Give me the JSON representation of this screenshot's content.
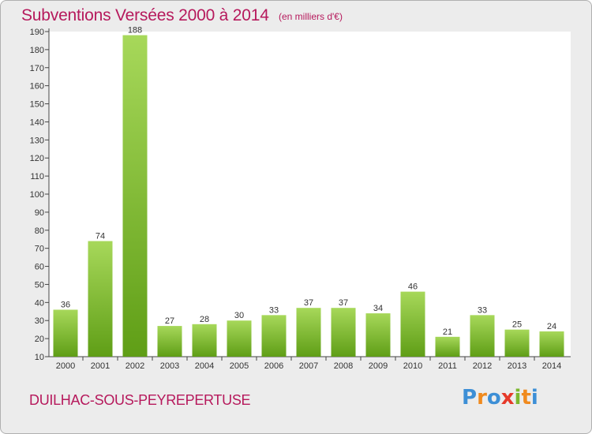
{
  "header": {
    "title": "Subventions Versées 2000 à 2014",
    "unit_note": "(en milliers d'€)"
  },
  "footer": {
    "commune": "DUILHAC-SOUS-PEYREPERTUSE",
    "logo_letters": [
      "P",
      "r",
      "o",
      "x",
      "i",
      "t",
      "i"
    ]
  },
  "colors": {
    "title": "#b6195c",
    "bar_top": "#a7d85a",
    "bar_bottom": "#5f9e16",
    "plot_background": "#ffffff",
    "frame_background": "#ececec",
    "logo": [
      "#3d8fd6",
      "#f08a1e",
      "#3d8fd6",
      "#e63a2a",
      "#7cb82f",
      "#f08a1e",
      "#3d8fd6"
    ]
  },
  "chart_data": {
    "type": "bar",
    "title": "Subventions Versées 2000 à 2014",
    "subtitle": "(en milliers d'€)",
    "categories": [
      "2000",
      "2001",
      "2002",
      "2003",
      "2004",
      "2005",
      "2006",
      "2007",
      "2008",
      "2009",
      "2010",
      "2011",
      "2012",
      "2013",
      "2014"
    ],
    "values": [
      36,
      74,
      188,
      27,
      28,
      30,
      33,
      37,
      37,
      34,
      46,
      21,
      33,
      25,
      24
    ],
    "ylim": [
      10,
      190
    ],
    "yticks": [
      10,
      20,
      30,
      40,
      50,
      60,
      70,
      80,
      90,
      100,
      110,
      120,
      130,
      140,
      150,
      160,
      170,
      180,
      190
    ],
    "grid": false,
    "data_labels": true,
    "legend": "none"
  }
}
